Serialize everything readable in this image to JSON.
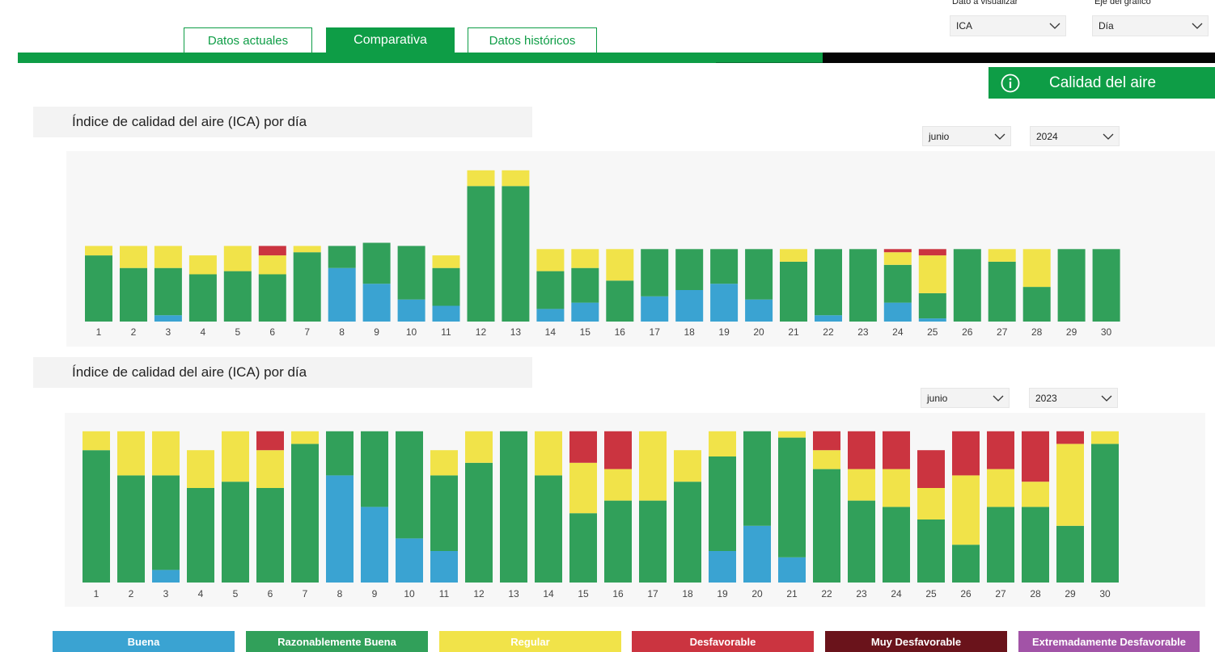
{
  "controls": {
    "dato_label": "Dato a visualizar",
    "dato_value": "ICA",
    "eje_label": "Eje del gráfico",
    "eje_value": "Día"
  },
  "tabs": [
    {
      "label": "Datos actuales"
    },
    {
      "label": "Comparativa"
    },
    {
      "label": "Datos históricos"
    }
  ],
  "info": {
    "label": "Calidad del aire"
  },
  "legend": [
    {
      "label": "Buena",
      "color": "#3aa3d2"
    },
    {
      "label": "Razonablemente Buena",
      "color": "#31a05a"
    },
    {
      "label": "Regular",
      "color": "#f1e349"
    },
    {
      "label": "Desfavorable",
      "color": "#cb3440"
    },
    {
      "label": "Muy Desfavorable",
      "color": "#6a131b"
    },
    {
      "label": "Extremadamente Desfavorable",
      "color": "#a253a7"
    }
  ],
  "chart_data": [
    {
      "type": "bar",
      "stacked": true,
      "title": "Índice de calidad del aire (ICA) por día",
      "month": "junio",
      "year": "2024",
      "categories": [
        "1",
        "2",
        "3",
        "4",
        "5",
        "6",
        "7",
        "8",
        "9",
        "10",
        "11",
        "12",
        "13",
        "14",
        "15",
        "16",
        "17",
        "18",
        "19",
        "20",
        "21",
        "22",
        "23",
        "24",
        "25",
        "26",
        "27",
        "28",
        "29",
        "30"
      ],
      "series": [
        {
          "name": "Buena",
          "values": [
            0,
            0,
            2,
            0,
            0,
            0,
            0,
            17,
            12,
            7,
            5,
            0,
            0,
            4,
            6,
            0,
            8,
            10,
            12,
            7,
            0,
            2,
            0,
            6,
            1,
            0,
            0,
            0,
            0,
            0
          ]
        },
        {
          "name": "Razonablemente Buena",
          "values": [
            21,
            17,
            15,
            15,
            16,
            15,
            22,
            7,
            13,
            17,
            12,
            43,
            43,
            12,
            11,
            13,
            15,
            13,
            11,
            16,
            19,
            21,
            23,
            12,
            8,
            23,
            19,
            11,
            23,
            23
          ]
        },
        {
          "name": "Regular",
          "values": [
            3,
            7,
            7,
            6,
            8,
            6,
            2,
            0,
            0,
            0,
            4,
            5,
            5,
            7,
            6,
            10,
            0,
            0,
            0,
            0,
            4,
            0,
            0,
            4,
            12,
            0,
            4,
            12,
            0,
            0
          ]
        },
        {
          "name": "Desfavorable",
          "values": [
            0,
            0,
            0,
            0,
            0,
            3,
            0,
            0,
            0,
            0,
            0,
            0,
            0,
            0,
            0,
            0,
            0,
            0,
            0,
            0,
            0,
            0,
            0,
            1,
            2,
            0,
            0,
            0,
            0,
            0
          ]
        }
      ],
      "ylim": [
        0,
        50
      ],
      "grid": false
    },
    {
      "type": "bar",
      "stacked": true,
      "title": "Índice de calidad del aire (ICA) por día",
      "month": "junio",
      "year": "2023",
      "categories": [
        "1",
        "2",
        "3",
        "4",
        "5",
        "6",
        "7",
        "8",
        "9",
        "10",
        "11",
        "12",
        "13",
        "14",
        "15",
        "16",
        "17",
        "18",
        "19",
        "20",
        "21",
        "22",
        "23",
        "24",
        "25",
        "26",
        "27",
        "28",
        "29",
        "30"
      ],
      "series": [
        {
          "name": "Buena",
          "values": [
            0,
            0,
            4,
            0,
            0,
            0,
            0,
            34,
            24,
            14,
            10,
            0,
            0,
            0,
            0,
            0,
            0,
            0,
            10,
            18,
            8,
            0,
            0,
            0,
            0,
            0,
            0,
            0,
            0,
            0
          ]
        },
        {
          "name": "Razonablemente Buena",
          "values": [
            42,
            34,
            30,
            30,
            32,
            30,
            44,
            14,
            24,
            34,
            24,
            38,
            48,
            34,
            22,
            26,
            26,
            32,
            30,
            30,
            38,
            36,
            26,
            24,
            20,
            12,
            24,
            24,
            18,
            44
          ]
        },
        {
          "name": "Regular",
          "values": [
            6,
            14,
            14,
            12,
            16,
            12,
            4,
            0,
            0,
            0,
            8,
            10,
            0,
            14,
            16,
            10,
            22,
            10,
            8,
            0,
            2,
            6,
            10,
            12,
            10,
            22,
            12,
            8,
            26,
            4
          ]
        },
        {
          "name": "Desfavorable",
          "values": [
            0,
            0,
            0,
            0,
            0,
            6,
            0,
            0,
            0,
            0,
            0,
            0,
            0,
            0,
            10,
            12,
            0,
            0,
            0,
            0,
            0,
            6,
            12,
            12,
            12,
            14,
            12,
            16,
            4,
            0
          ]
        }
      ],
      "ylim": [
        0,
        50
      ],
      "grid": false
    }
  ]
}
